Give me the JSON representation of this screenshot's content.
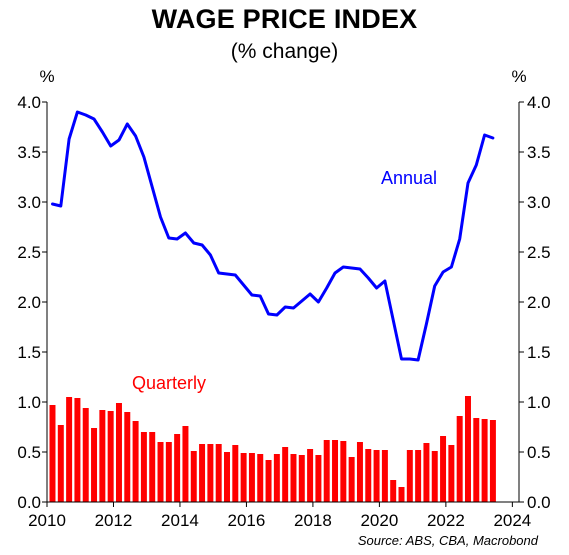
{
  "chart_data": {
    "type": "line+bar",
    "title": "WAGE PRICE INDEX",
    "subtitle": "(% change)",
    "ylabel_left": "%",
    "ylabel_right": "%",
    "source": "Source: ABS, CBA, Macrobond",
    "ylim": [
      0,
      4.0
    ],
    "yticks": [
      "0.0",
      "0.5",
      "1.0",
      "1.5",
      "2.0",
      "2.5",
      "3.0",
      "3.5",
      "4.0"
    ],
    "xlim": [
      2010,
      2024.2
    ],
    "xticks": [
      "2010",
      "2012",
      "2014",
      "2016",
      "2018",
      "2020",
      "2022",
      "2024"
    ],
    "grid": false,
    "series": [
      {
        "name": "Annual",
        "type": "line",
        "color": "#0000ff",
        "x": [
          2010.0,
          2010.25,
          2010.5,
          2010.75,
          2011.0,
          2011.25,
          2011.5,
          2011.75,
          2012.0,
          2012.25,
          2012.5,
          2012.75,
          2013.0,
          2013.25,
          2013.5,
          2013.75,
          2014.0,
          2014.25,
          2014.5,
          2014.75,
          2015.0,
          2015.25,
          2015.5,
          2015.75,
          2016.0,
          2016.25,
          2016.5,
          2016.75,
          2017.0,
          2017.25,
          2017.5,
          2017.75,
          2018.0,
          2018.25,
          2018.5,
          2018.75,
          2019.0,
          2019.25,
          2019.5,
          2019.75,
          2020.0,
          2020.25,
          2020.5,
          2020.75,
          2021.0,
          2021.25,
          2021.5,
          2021.75,
          2022.0,
          2022.25,
          2022.5,
          2022.75,
          2023.0,
          2023.25
        ],
        "values": [
          2.98,
          2.96,
          3.63,
          3.9,
          3.87,
          3.83,
          3.7,
          3.56,
          3.62,
          3.78,
          3.66,
          3.45,
          3.15,
          2.85,
          2.64,
          2.63,
          2.69,
          2.59,
          2.57,
          2.47,
          2.29,
          2.28,
          2.27,
          2.17,
          2.07,
          2.06,
          1.88,
          1.87,
          1.95,
          1.94,
          2.01,
          2.08,
          2.0,
          2.14,
          2.29,
          2.35,
          2.34,
          2.33,
          2.24,
          2.14,
          2.21,
          1.82,
          1.43,
          1.43,
          1.42,
          1.78,
          2.16,
          2.3,
          2.35,
          2.63,
          3.19,
          3.37,
          3.67,
          3.64
        ]
      },
      {
        "name": "Quarterly",
        "type": "bar",
        "color": "#ff0000",
        "x": [
          2010.0,
          2010.25,
          2010.5,
          2010.75,
          2011.0,
          2011.25,
          2011.5,
          2011.75,
          2012.0,
          2012.25,
          2012.5,
          2012.75,
          2013.0,
          2013.25,
          2013.5,
          2013.75,
          2014.0,
          2014.25,
          2014.5,
          2014.75,
          2015.0,
          2015.25,
          2015.5,
          2015.75,
          2016.0,
          2016.25,
          2016.5,
          2016.75,
          2017.0,
          2017.25,
          2017.5,
          2017.75,
          2018.0,
          2018.25,
          2018.5,
          2018.75,
          2019.0,
          2019.25,
          2019.5,
          2019.75,
          2020.0,
          2020.25,
          2020.5,
          2020.75,
          2021.0,
          2021.25,
          2021.5,
          2021.75,
          2022.0,
          2022.25,
          2022.5,
          2022.75,
          2023.0,
          2023.25
        ],
        "values": [
          0.97,
          0.77,
          1.05,
          1.04,
          0.94,
          0.74,
          0.92,
          0.91,
          0.99,
          0.9,
          0.81,
          0.7,
          0.7,
          0.6,
          0.6,
          0.68,
          0.76,
          0.51,
          0.58,
          0.58,
          0.58,
          0.5,
          0.57,
          0.49,
          0.49,
          0.48,
          0.42,
          0.48,
          0.55,
          0.48,
          0.47,
          0.53,
          0.47,
          0.62,
          0.62,
          0.61,
          0.45,
          0.6,
          0.53,
          0.52,
          0.52,
          0.22,
          0.15,
          0.52,
          0.52,
          0.59,
          0.51,
          0.66,
          0.57,
          0.86,
          1.06,
          0.84,
          0.83,
          0.82
        ]
      }
    ]
  }
}
